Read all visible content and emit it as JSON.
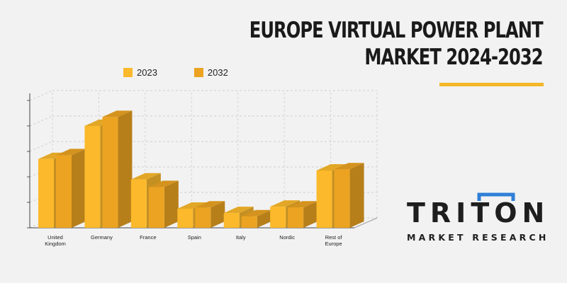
{
  "title": {
    "line1": "EUROPE VIRTUAL POWER PLANT",
    "line2": "MARKET 2024-2032"
  },
  "colors": {
    "accent": "#f4b728",
    "series_2023": "#fbb92b",
    "series_2032": "#eba321",
    "text": "#1a1a1a",
    "logo_blue": "#2f7fd8"
  },
  "logo": {
    "word": "TRITON",
    "subtitle": "MARKET RESEARCH"
  },
  "chart_data": {
    "type": "bar",
    "title": "",
    "xlabel": "",
    "ylabel": "",
    "categories": [
      "United Kingdom",
      "Germany",
      "France",
      "Spain",
      "Italy",
      "Nordic",
      "Rest of Europe"
    ],
    "category_lines": [
      [
        "United",
        "Kingdom"
      ],
      [
        "Germany"
      ],
      [
        "France"
      ],
      [
        "Spain"
      ],
      [
        "Italy"
      ],
      [
        "Nordic"
      ],
      [
        "Rest of",
        "Europe"
      ]
    ],
    "series": [
      {
        "name": "2023",
        "values": [
          27,
          40,
          19,
          7.5,
          5.8,
          8.3,
          22.5
        ]
      },
      {
        "name": "2032",
        "values": [
          28.5,
          43.5,
          16,
          8,
          4.5,
          8,
          23
        ]
      }
    ],
    "ylim": [
      0,
      50
    ],
    "grid": true,
    "legend": "top"
  }
}
